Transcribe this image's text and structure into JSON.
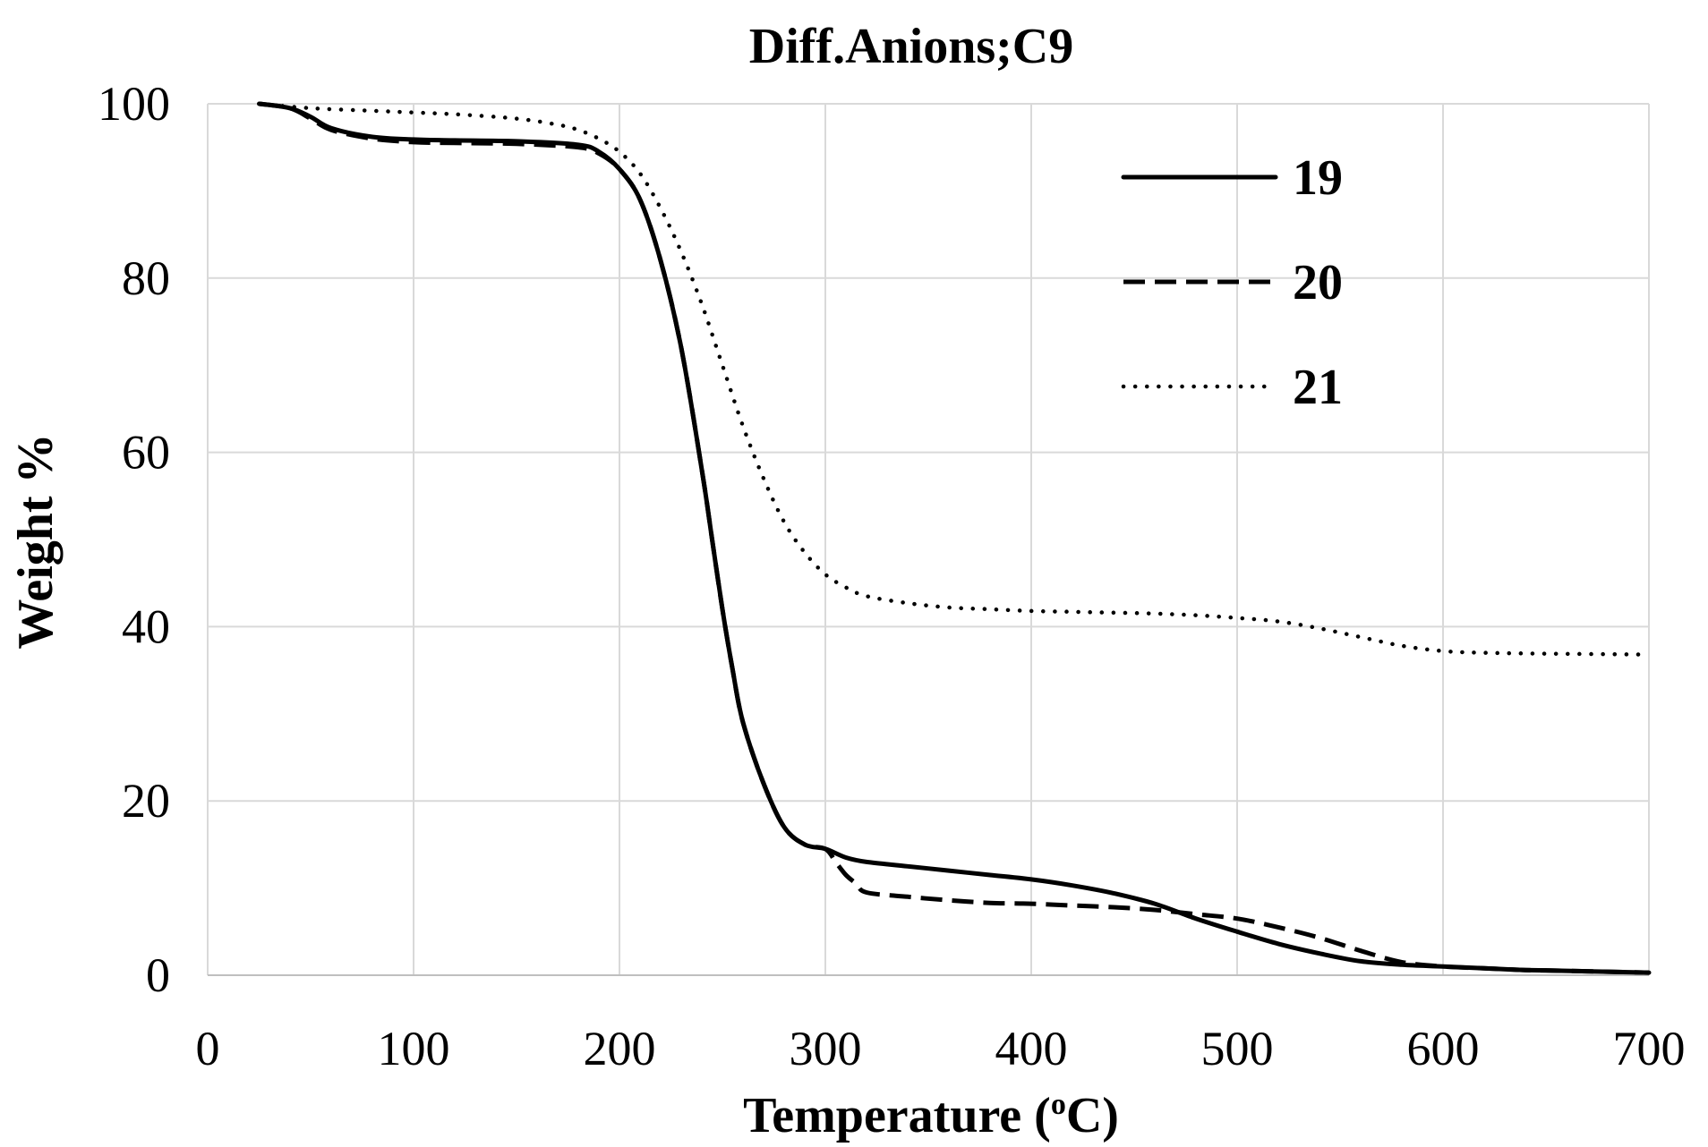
{
  "chart_data": {
    "type": "line",
    "title": "Diff.Anions;C9",
    "xlabel": "Temperature (",
    "xlabel_sup": "o",
    "xlabel_end": "C)",
    "ylabel": "Weight %",
    "xlim": [
      0,
      700
    ],
    "ylim": [
      0,
      100
    ],
    "xticks": [
      0,
      100,
      200,
      300,
      400,
      500,
      600,
      700
    ],
    "yticks": [
      0,
      20,
      40,
      60,
      80,
      100
    ],
    "grid": true,
    "legend_position": "top-right",
    "series": [
      {
        "name": "19",
        "style": "solid",
        "x": [
          25,
          40,
          50,
          60,
          80,
          100,
          120,
          150,
          180,
          190,
          200,
          210,
          220,
          230,
          240,
          245,
          250,
          255,
          260,
          270,
          280,
          290,
          300,
          310,
          320,
          340,
          360,
          380,
          400,
          420,
          440,
          460,
          480,
          500,
          520,
          540,
          560,
          580,
          600,
          620,
          640,
          660,
          680,
          700
        ],
        "y": [
          100,
          99.5,
          98.5,
          97.2,
          96.2,
          95.9,
          95.8,
          95.7,
          95.3,
          94.5,
          92.5,
          89,
          82,
          72,
          58,
          50,
          42,
          35,
          29,
          22,
          17,
          15,
          14.5,
          13.5,
          13,
          12.5,
          12,
          11.5,
          11,
          10.3,
          9.4,
          8.2,
          6.5,
          5,
          3.6,
          2.5,
          1.6,
          1.2,
          1,
          0.8,
          0.6,
          0.5,
          0.4,
          0.3
        ]
      },
      {
        "name": "20",
        "style": "dashed",
        "x": [
          25,
          40,
          50,
          60,
          80,
          100,
          120,
          150,
          180,
          190,
          200,
          210,
          220,
          230,
          240,
          245,
          250,
          255,
          260,
          270,
          280,
          290,
          300,
          305,
          310,
          315,
          320,
          340,
          360,
          380,
          400,
          420,
          440,
          460,
          480,
          500,
          520,
          540,
          560,
          580,
          600,
          620,
          640,
          660,
          680,
          700
        ],
        "y": [
          100,
          99.5,
          98.3,
          97,
          96,
          95.6,
          95.5,
          95.4,
          95,
          94.3,
          92.5,
          89,
          82,
          72,
          58,
          50,
          42,
          35,
          29,
          22,
          17,
          15,
          14.5,
          13,
          11.5,
          10.5,
          9.5,
          9,
          8.6,
          8.3,
          8.2,
          8,
          7.8,
          7.5,
          7,
          6.5,
          5.5,
          4.3,
          2.8,
          1.5,
          1,
          0.8,
          0.6,
          0.5,
          0.4,
          0.3
        ]
      },
      {
        "name": "21",
        "style": "dotted",
        "x": [
          25,
          50,
          80,
          100,
          120,
          150,
          170,
          180,
          190,
          200,
          210,
          220,
          230,
          240,
          250,
          260,
          270,
          280,
          290,
          300,
          310,
          320,
          340,
          360,
          380,
          400,
          420,
          440,
          460,
          480,
          500,
          520,
          540,
          560,
          580,
          600,
          620,
          650,
          700
        ],
        "y": [
          100,
          99.5,
          99.2,
          99,
          98.8,
          98.3,
          97.6,
          97,
          96,
          94.5,
          92,
          88,
          83,
          77,
          70,
          63,
          57,
          52,
          48.5,
          46,
          44.5,
          43.5,
          42.7,
          42.2,
          42,
          41.8,
          41.7,
          41.6,
          41.5,
          41.3,
          41,
          40.6,
          39.8,
          38.8,
          37.8,
          37.2,
          37,
          36.9,
          36.8
        ]
      }
    ]
  }
}
